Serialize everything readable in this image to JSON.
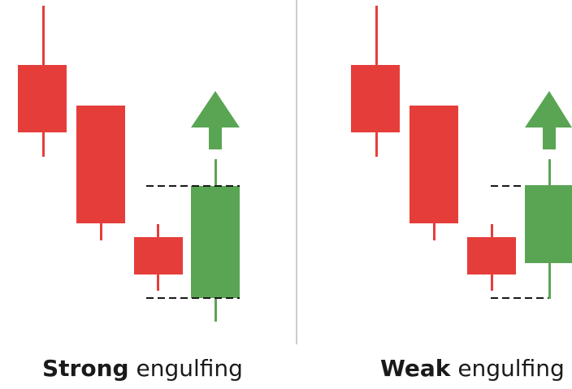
{
  "colors": {
    "bearish": "#e53e3a",
    "bullish": "#5aa553",
    "dashed_line": "#1a1a1a",
    "divider": "#bbbbbb"
  },
  "captions": {
    "left": {
      "bold": "Strong",
      "rest": "engulfing"
    },
    "right": {
      "bold": "Weak",
      "rest": "engulfing"
    }
  },
  "icons": {
    "up_arrow": "up-arrow-icon"
  }
}
